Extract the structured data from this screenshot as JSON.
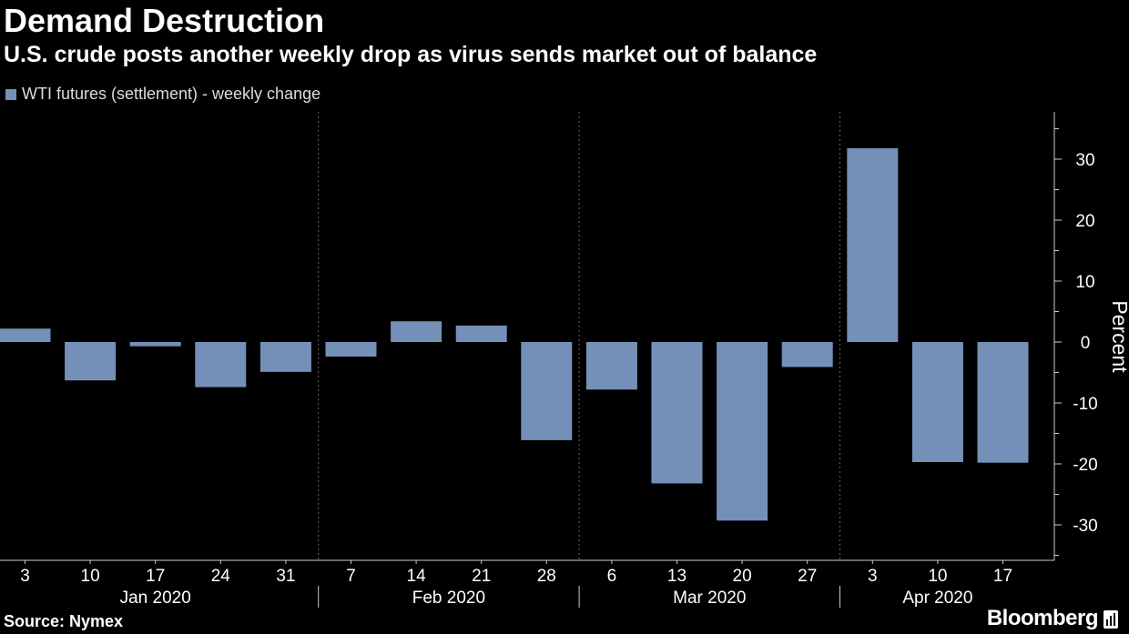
{
  "header": {
    "title": "Demand Destruction",
    "subtitle": "U.S. crude posts another weekly drop as virus sends market out of balance"
  },
  "footer": {
    "source": "Source: Nymex",
    "brand": "Bloomberg"
  },
  "colors": {
    "background": "#000000",
    "bar": "#7590b8",
    "grid": "#666666",
    "axis": "#cccccc",
    "text": "#ffffff"
  },
  "chart_data": {
    "type": "bar",
    "legend": "WTI futures (settlement) - weekly change",
    "ylabel": "Percent",
    "ylim": [
      -36,
      38
    ],
    "yticks": [
      30,
      20,
      10,
      0,
      -10,
      -20,
      -30
    ],
    "grid": "vertical dotted at month boundaries",
    "categories": [
      "3",
      "10",
      "17",
      "24",
      "31",
      "7",
      "14",
      "21",
      "28",
      "6",
      "13",
      "20",
      "27",
      "3",
      "10",
      "17"
    ],
    "dates": [
      "2020-01-03",
      "2020-01-10",
      "2020-01-17",
      "2020-01-24",
      "2020-01-31",
      "2020-02-07",
      "2020-02-14",
      "2020-02-21",
      "2020-02-28",
      "2020-03-06",
      "2020-03-13",
      "2020-03-20",
      "2020-03-27",
      "2020-04-03",
      "2020-04-10",
      "2020-04-17"
    ],
    "values": [
      2.2,
      -6.3,
      -0.7,
      -7.4,
      -4.9,
      -2.4,
      3.4,
      2.7,
      -16.1,
      -7.8,
      -23.2,
      -29.3,
      -4.1,
      31.8,
      -19.7,
      -19.8
    ],
    "months": [
      {
        "label": "Jan 2020",
        "start": 0,
        "end": 4
      },
      {
        "label": "Feb 2020",
        "start": 5,
        "end": 8
      },
      {
        "label": "Mar 2020",
        "start": 9,
        "end": 12
      },
      {
        "label": "Apr 2020",
        "start": 13,
        "end": 15
      }
    ]
  }
}
